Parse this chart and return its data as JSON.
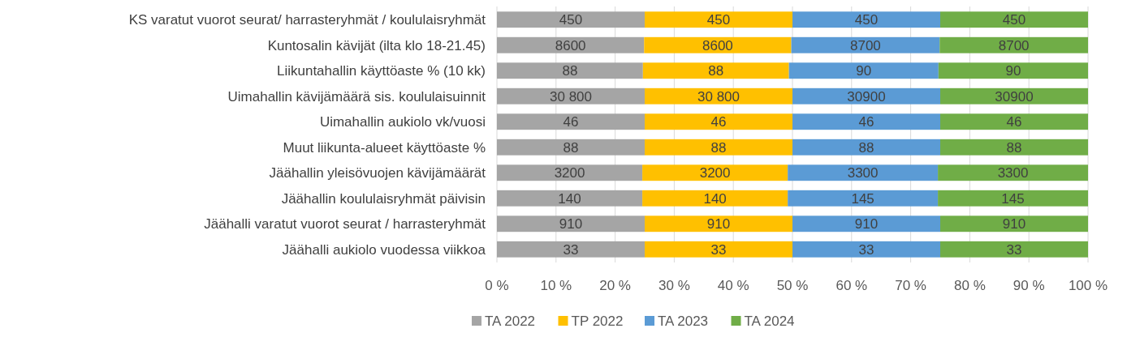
{
  "chart_data": {
    "type": "bar",
    "orientation": "horizontal",
    "stacked": true,
    "categories": [
      "KS varatut vuorot seurat/ harrasteryhmät / koululaisryhmät",
      "Kuntosalin kävijät (ilta klo 18-21.45)",
      "Liikuntahallin käyttöaste % (10 kk)",
      "Uimahallin kävijämäärä sis. koululaisuinnit",
      "Uimahallin aukiolo vk/vuosi",
      "Muut liikunta-alueet käyttöaste %",
      "Jäähallin yleisövuojen kävijämäärät",
      "Jäähallin koululaisryhmät päivisin",
      "Jäähalli varatut vuorot seurat / harrasteryhmät",
      "Jäähalli aukiolo vuodessa viikkoa"
    ],
    "series": [
      {
        "name": "TA 2022",
        "color": "#a5a5a5",
        "values": [
          25,
          24.9,
          24.7,
          25,
          25,
          25,
          24.6,
          24.6,
          25,
          25
        ]
      },
      {
        "name": "TP 2022",
        "color": "#ffc000",
        "values": [
          25,
          24.9,
          24.7,
          25,
          25,
          25,
          24.6,
          24.6,
          25,
          25
        ]
      },
      {
        "name": "TA 2023",
        "color": "#5b9bd5",
        "values": [
          25,
          25.1,
          25.3,
          25,
          25,
          25,
          25.4,
          25.4,
          25,
          25
        ]
      },
      {
        "name": "TA 2024",
        "color": "#70ad47",
        "values": [
          25,
          25.1,
          25.3,
          25,
          25,
          25,
          25.4,
          25.4,
          25,
          25
        ]
      }
    ],
    "annotations": [
      "450",
      "450",
      "450",
      "450",
      "8600",
      "8600",
      "8700",
      "8700",
      "88",
      "88",
      "90",
      "90",
      "30 800",
      "30 800",
      "30900",
      "30900",
      "46",
      "46",
      "46",
      "46",
      "88",
      "88",
      "88",
      "88",
      "3200",
      "3200",
      "3300",
      "3300",
      "140",
      "140",
      "145",
      "145",
      "910",
      "910",
      "910",
      "910",
      "33",
      "33",
      "33",
      "33"
    ],
    "xlim": [
      0,
      100
    ],
    "xticks": [
      {
        "value": 0,
        "label": "0 %"
      },
      {
        "value": 10,
        "label": "10 %"
      },
      {
        "value": 20,
        "label": "20 %"
      },
      {
        "value": 30,
        "label": "30 %"
      },
      {
        "value": 40,
        "label": "40 %"
      },
      {
        "value": 50,
        "label": "50 %"
      },
      {
        "value": 60,
        "label": "60 %"
      },
      {
        "value": 70,
        "label": "70 %"
      },
      {
        "value": 80,
        "label": "80 %"
      },
      {
        "value": 90,
        "label": "90 %"
      },
      {
        "value": 100,
        "label": "100 %"
      }
    ],
    "grid": "x",
    "legend": "bottom"
  }
}
